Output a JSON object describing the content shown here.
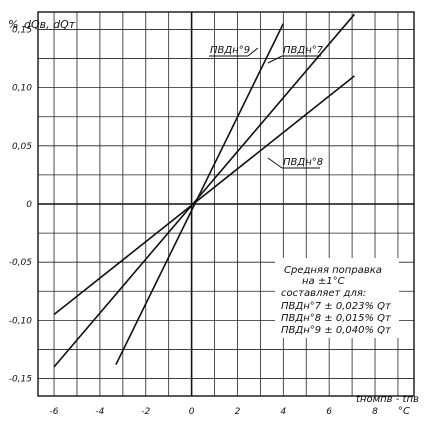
{
  "chart_data": {
    "type": "line",
    "x_ticks": [
      "-6",
      "-4",
      "-2",
      "0",
      "2",
      "4",
      "6",
      "8"
    ],
    "y_ticks": [
      "0,15",
      "0,10",
      "0,05",
      "0",
      "-0,05",
      "-0,10",
      "-0,15"
    ],
    "xlim": [
      -6.7,
      9.7
    ],
    "ylim": [
      -0.165,
      0.165
    ],
    "grid": true,
    "y_unit": "%",
    "ylabel": "dQв, dQт",
    "xlabel": "tномпв - tпв",
    "x_unit": "°C",
    "series": [
      {
        "name": "ПВДн°9",
        "x": [
          -3.3,
          4.0
        ],
        "y": [
          -0.138,
          0.155
        ]
      },
      {
        "name": "ПВДн°7",
        "x": [
          -6.0,
          7.1
        ],
        "y": [
          -0.14,
          0.163
        ]
      },
      {
        "name": "ПВДн°8",
        "x": [
          -6.0,
          7.1
        ],
        "y": [
          -0.095,
          0.11
        ]
      }
    ],
    "annotation": [
      "Средняя поправка",
      "на ±1°C",
      "составляет для:",
      "ПВДн°7  ± 0,023% Qт",
      "ПВДн°8  ± 0,015% Qт",
      "ПВДн°9  ± 0,040% Qт"
    ]
  }
}
